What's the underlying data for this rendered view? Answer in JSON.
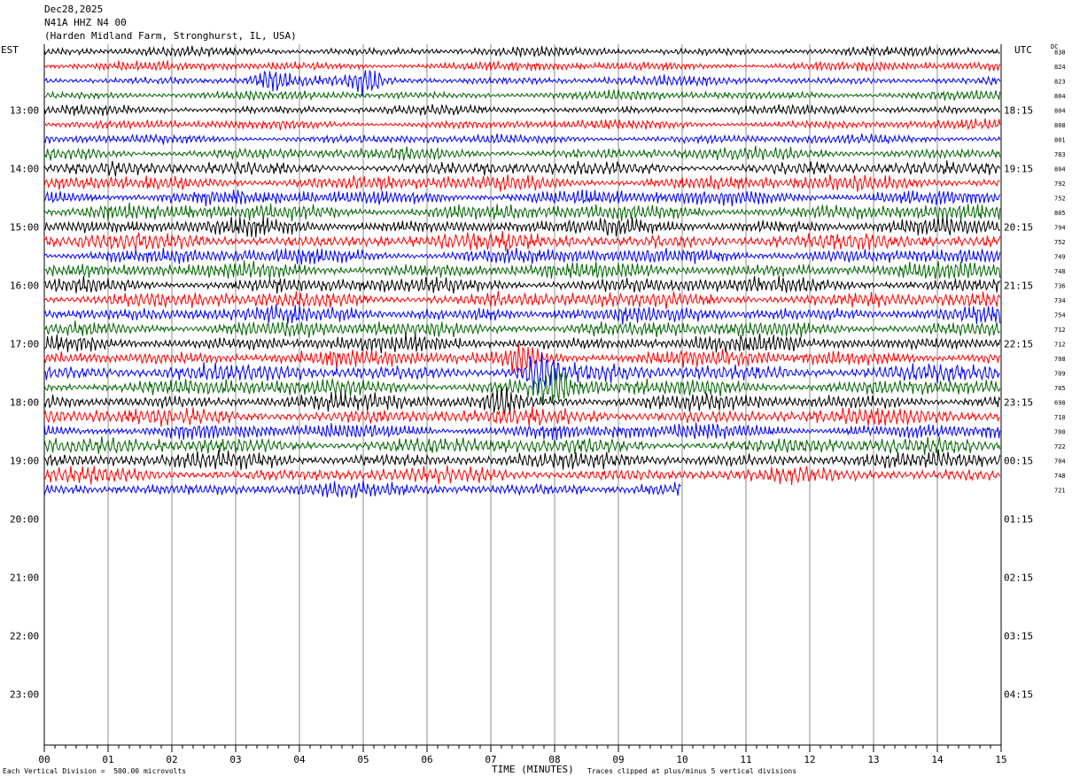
{
  "header": {
    "date": "Dec28,2025",
    "station": "N41A HHZ N4 00",
    "location": "(Harden Midland Farm, Stronghurst, IL, USA)"
  },
  "timezones": {
    "left": "EST",
    "right": "UTC",
    "dc_label": "DC"
  },
  "footer": {
    "left": "Each Vertical Division =  500.00 microvolts",
    "center": "TIME (MINUTES)",
    "right": "Traces clipped at plus/minus 5 vertical divisions"
  },
  "trace_colors": [
    "#000000",
    "#ff0000",
    "#0000ff",
    "#006400"
  ],
  "chart_data": {
    "type": "line",
    "title": "",
    "xlabel": "TIME (MINUTES)",
    "xlim": [
      0,
      15
    ],
    "x_ticks": [
      "00",
      "01",
      "02",
      "03",
      "04",
      "05",
      "06",
      "07",
      "08",
      "09",
      "10",
      "11",
      "12",
      "13",
      "14",
      "15"
    ],
    "rows_total": 48,
    "left_hour_labels": [
      "13:00",
      "14:00",
      "15:00",
      "16:00",
      "17:00",
      "18:00",
      "19:00",
      "20:00",
      "21:00",
      "22:00",
      "23:00"
    ],
    "right_hour_labels": [
      "18:15",
      "19:15",
      "20:15",
      "21:15",
      "22:15",
      "23:15",
      "00:15",
      "01:15",
      "02:15",
      "03:15",
      "04:15"
    ],
    "first_labeled_row": 4,
    "rows_per_hour": 4,
    "dc_values": [
      838,
      824,
      823,
      804,
      804,
      808,
      801,
      783,
      804,
      792,
      752,
      805,
      794,
      752,
      749,
      748,
      736,
      734,
      754,
      712,
      712,
      708,
      709,
      705,
      698,
      710,
      700,
      722,
      704,
      748,
      721
    ],
    "row_amplitudes": [
      0.35,
      0.35,
      0.35,
      0.35,
      0.35,
      0.35,
      0.35,
      0.45,
      0.5,
      0.55,
      0.6,
      0.6,
      0.6,
      0.6,
      0.6,
      0.6,
      0.6,
      0.6,
      0.6,
      0.6,
      0.6,
      0.6,
      0.65,
      0.65,
      0.6,
      0.6,
      0.6,
      0.6,
      0.6,
      0.55,
      0.55
    ],
    "last_row_end_minute": 10,
    "events": [
      {
        "row": 2,
        "minute": 3.55,
        "strength": 2.6
      },
      {
        "row": 2,
        "minute": 5.05,
        "strength": 2.6
      },
      {
        "row": 21,
        "minute": 7.5,
        "strength": 1.6
      },
      {
        "row": 22,
        "minute": 7.8,
        "strength": 1.9
      },
      {
        "row": 23,
        "minute": 8.0,
        "strength": 2.0
      },
      {
        "row": 24,
        "minute": 7.2,
        "strength": 1.6
      }
    ]
  }
}
